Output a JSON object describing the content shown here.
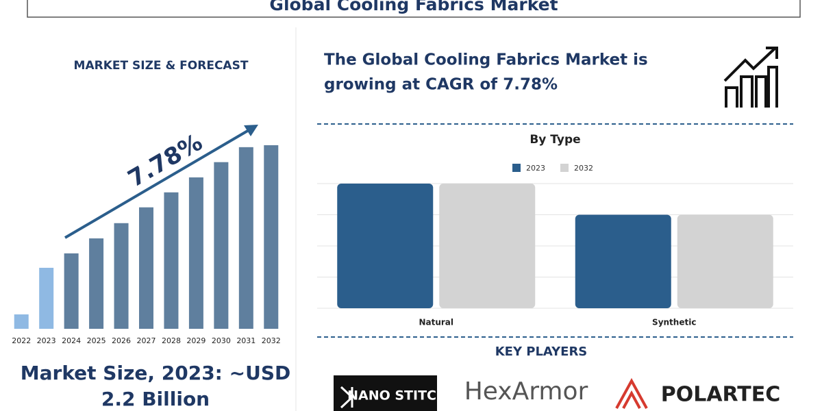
{
  "header": {
    "title": "Global Cooling Fabrics Market"
  },
  "left_panel": {
    "heading": "MARKET SIZE & FORECAST",
    "market_size_lines": [
      "Market Size, 2023: ~USD",
      "2.2 Billion"
    ]
  },
  "right_panel": {
    "headline_lines": [
      "The Global Cooling Fabrics Market is",
      "growing at CAGR of 7.78%"
    ],
    "key_players_title": "KEY PLAYERS",
    "key_players": [
      "NANO STITCH",
      "HexArmor",
      "POLARTEC"
    ]
  },
  "chart_data": [
    {
      "type": "bar",
      "categories": [
        "2022",
        "2023",
        "2024",
        "2025",
        "2026",
        "2027",
        "2028",
        "2029",
        "2030",
        "2031",
        "2032"
      ],
      "values": [
        0.52,
        2.2,
        2.72,
        3.26,
        3.81,
        4.38,
        4.92,
        5.46,
        6.01,
        6.55,
        6.62
      ],
      "colors": [
        "#8fb9e3",
        "#8fb9e3",
        "#5f7f9e",
        "#5f7f9e",
        "#5f7f9e",
        "#5f7f9e",
        "#5f7f9e",
        "#5f7f9e",
        "#5f7f9e",
        "#5f7f9e",
        "#5f7f9e"
      ],
      "annotation": "7.78%"
    },
    {
      "type": "bar",
      "title": "By Type",
      "categories": [
        "Natural",
        "Synthetic"
      ],
      "series": [
        {
          "name": "2023",
          "color": "#2b5e8c",
          "values": [
            4.0,
            3.0
          ]
        },
        {
          "name": "2032",
          "color": "#d3d3d3",
          "values": [
            4.0,
            3.0
          ]
        }
      ],
      "ylim": [
        0,
        4
      ],
      "yticks": [
        0,
        1,
        2,
        3,
        4
      ],
      "grid": true,
      "legend": "top"
    }
  ]
}
